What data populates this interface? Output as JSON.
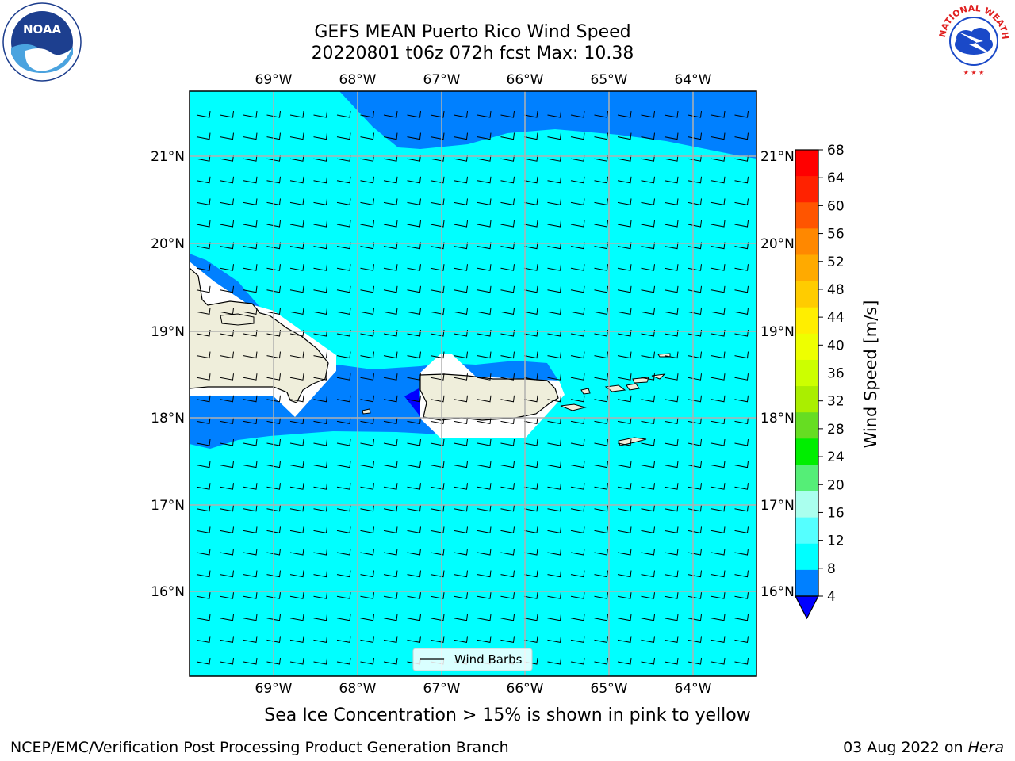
{
  "title": {
    "line1": "GEFS MEAN Puerto Rico Wind Speed",
    "line2": "20220801 t06z 072h fcst   Max: 10.38"
  },
  "map": {
    "lon_labels": [
      "69°W",
      "68°W",
      "67°W",
      "66°W",
      "65°W",
      "64°W"
    ],
    "lat_labels": [
      "21°N",
      "20°N",
      "19°N",
      "18°N",
      "17°N",
      "16°N"
    ],
    "legend_label": "Wind Barbs"
  },
  "colorbar": {
    "label": "Wind Speed [m/s]",
    "ticks": [
      "68",
      "64",
      "60",
      "56",
      "52",
      "48",
      "44",
      "40",
      "36",
      "32",
      "28",
      "24",
      "20",
      "16",
      "12",
      "8",
      "4"
    ],
    "colors": [
      "#ff0000",
      "#ff2200",
      "#ff5500",
      "#ff8800",
      "#ffaa00",
      "#ffcc00",
      "#ffee00",
      "#eeff00",
      "#ccff00",
      "#aaee00",
      "#66dd22",
      "#00ee00",
      "#55ee77",
      "#aaffee",
      "#55ffff",
      "#00ffff",
      "#0080ff"
    ],
    "underflow_color": "#0000ff"
  },
  "logos": {
    "left_text": "NOAA",
    "right_text": "NATIONAL WEATHER SERVICE"
  },
  "subtitle": "Sea Ice Concentration > 15% is shown in pink to yellow",
  "footer": {
    "left": "NCEP/EMC/Verification Post Processing Product Generation Branch",
    "right_date": "03 Aug 2022 on ",
    "right_machine": "Hera"
  }
}
